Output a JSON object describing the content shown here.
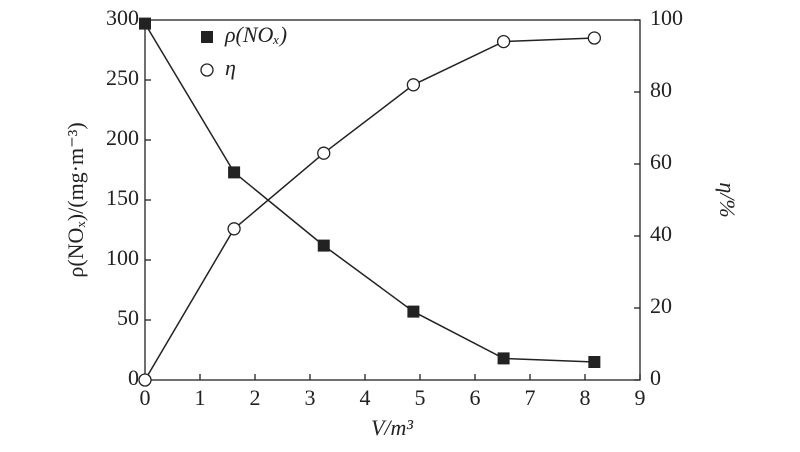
{
  "chart_data": {
    "type": "line",
    "x_label": "V/m³",
    "y_label": "ρ(NOₓ)/(mg·m⁻³)",
    "y2_label": "η/%",
    "x": [
      0,
      1.62,
      3.25,
      4.88,
      6.52,
      8.17
    ],
    "series": [
      {
        "name": "ρ(NOₓ)",
        "color": "#222222",
        "marker": "square",
        "values": [
          297,
          173,
          112,
          57,
          18,
          15
        ]
      },
      {
        "name": "η",
        "color": "#222222",
        "marker": "circle",
        "axis": "y2",
        "values": [
          0,
          42,
          63,
          82,
          94,
          95
        ]
      }
    ],
    "xlim": [
      0,
      9
    ],
    "xticks": [
      0,
      1,
      2,
      3,
      4,
      5,
      6,
      7,
      8,
      9
    ],
    "ylim": [
      0,
      300
    ],
    "yticks": [
      0,
      50,
      100,
      150,
      200,
      250,
      300
    ],
    "y2lim": [
      0,
      100
    ],
    "y2ticks": [
      0,
      20,
      40,
      60,
      80,
      100
    ],
    "legend": "upper left"
  }
}
